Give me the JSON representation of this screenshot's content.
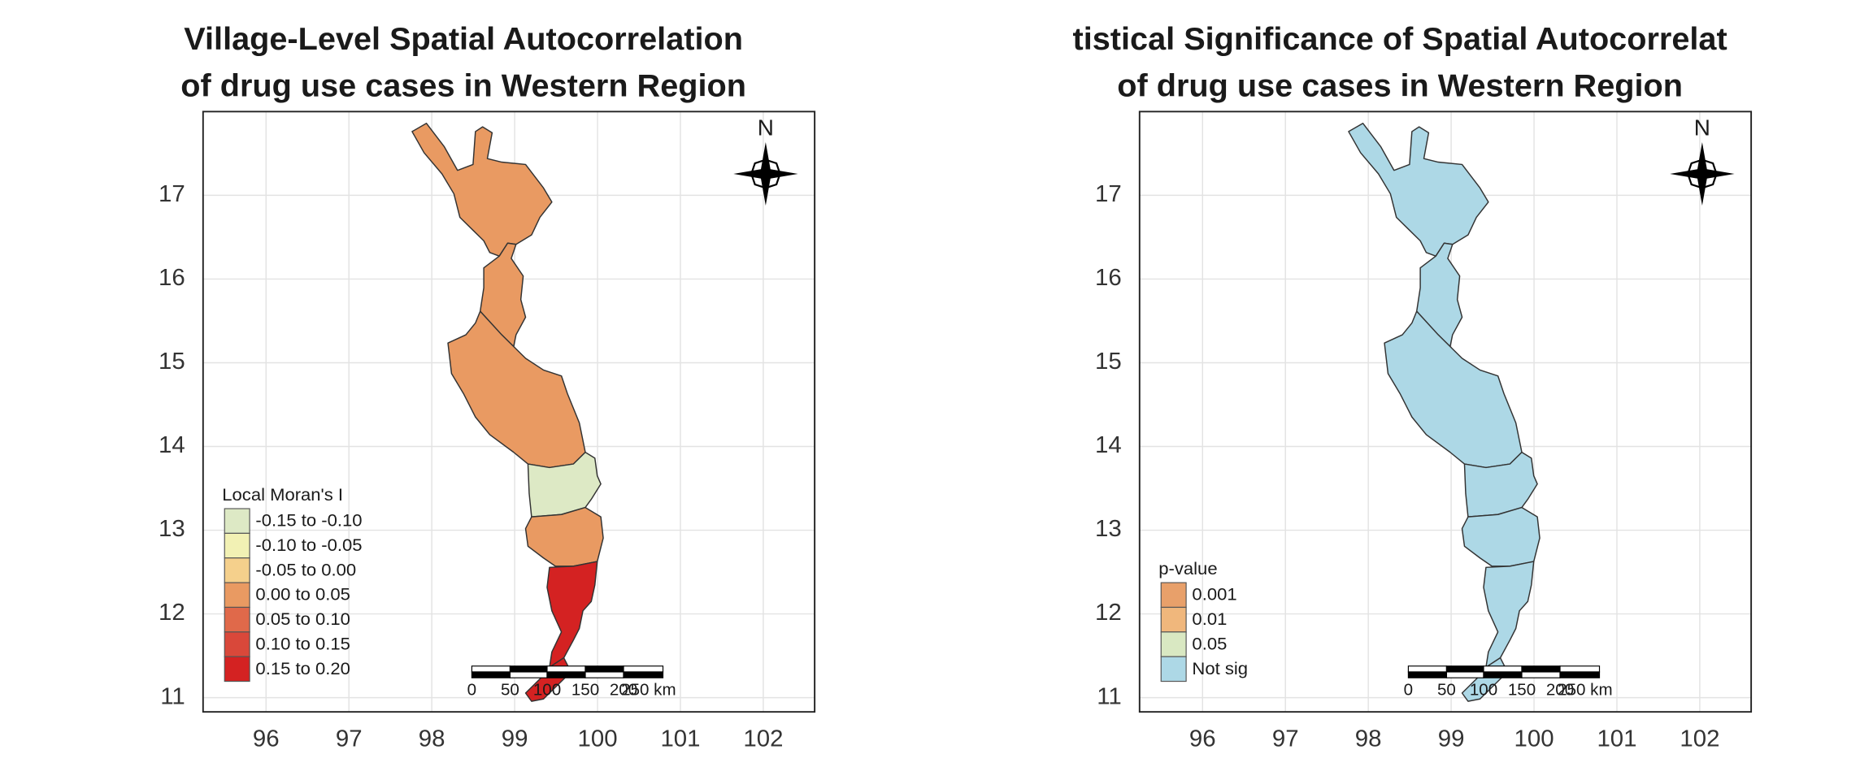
{
  "maps": [
    {
      "title": [
        "Village-Level Spatial Autocorrelation",
        "of drug use cases in Western Region"
      ],
      "xlim": [
        95.24,
        102.62
      ],
      "ylim": [
        10.83,
        18.0
      ],
      "xticks": [
        96,
        97,
        98,
        99,
        100,
        101,
        102
      ],
      "yticks": [
        11,
        12,
        13,
        14,
        15,
        16,
        17
      ],
      "north_label": "N",
      "legend": {
        "title": "Local Moran's I",
        "items": [
          {
            "label": "-0.15 to -0.10",
            "color": "#dde9c5"
          },
          {
            "label": "-0.10 to -0.05",
            "color": "#f2f1b4"
          },
          {
            "label": "-0.05 to 0.00",
            "color": "#f5d08c"
          },
          {
            "label": "0.00 to 0.05",
            "color": "#e99a62"
          },
          {
            "label": "0.05 to 0.10",
            "color": "#e0694a"
          },
          {
            "label": "0.10 to 0.15",
            "color": "#d9483a"
          },
          {
            "label": "0.15 to 0.20",
            "color": "#d42222"
          }
        ]
      },
      "scale_bar": {
        "labels": [
          "0",
          "50",
          "100",
          "150",
          "200",
          "250 km"
        ]
      }
    },
    {
      "title": [
        "tistical Significance of Spatial Autocorrelat",
        "of drug use cases in Western Region"
      ],
      "xlim": [
        95.24,
        102.62
      ],
      "ylim": [
        10.83,
        18.0
      ],
      "xticks": [
        96,
        97,
        98,
        99,
        100,
        101,
        102
      ],
      "yticks": [
        11,
        12,
        13,
        14,
        15,
        16,
        17
      ],
      "north_label": "N",
      "legend": {
        "title": "p-value",
        "items": [
          {
            "label": "0.001",
            "color": "#e8a06a"
          },
          {
            "label": "0.01",
            "color": "#f0b77c"
          },
          {
            "label": "0.05",
            "color": "#d9e8c2"
          },
          {
            "label": "Not sig",
            "color": "#add8e6"
          }
        ]
      },
      "scale_bar": {
        "labels": [
          "0",
          "50",
          "100",
          "150",
          "200",
          "250 km"
        ]
      }
    }
  ]
}
